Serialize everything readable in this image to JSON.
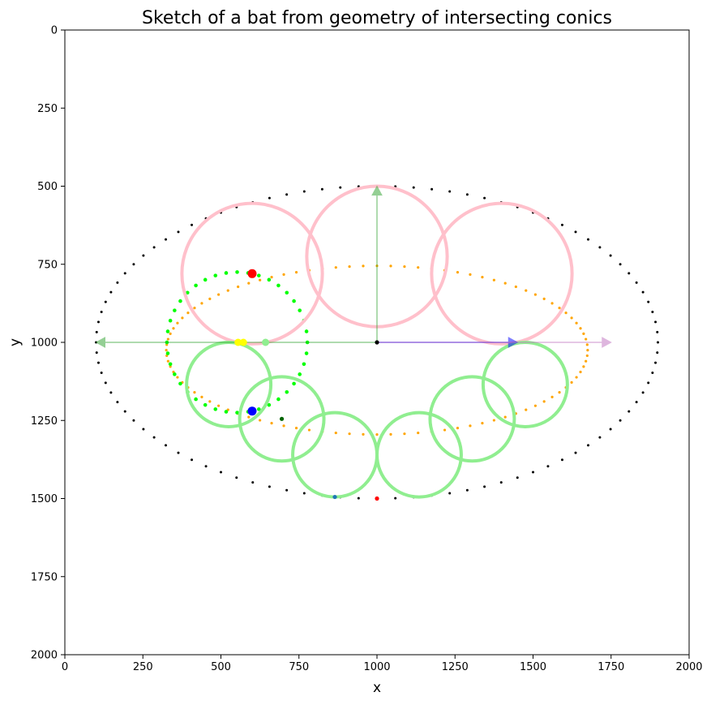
{
  "chart_data": {
    "type": "scatter",
    "title": "Sketch of a bat from geometry of intersecting conics",
    "xlabel": "x",
    "ylabel": "y",
    "xlim": [
      0,
      2000
    ],
    "ylim": [
      2000,
      0
    ],
    "y_inverted": true,
    "grid": false,
    "legend": "none",
    "xticks": [
      0,
      250,
      500,
      750,
      1000,
      1250,
      1500,
      1750,
      2000
    ],
    "yticks": [
      0,
      250,
      500,
      750,
      1000,
      1250,
      1500,
      1750,
      2000
    ],
    "xtick_labels": [
      "0",
      "250",
      "500",
      "750",
      "1000",
      "1250",
      "1500",
      "1750",
      "2000"
    ],
    "ytick_labels": [
      "0",
      "250",
      "500",
      "750",
      "1000",
      "1250",
      "1500",
      "1750",
      "2000"
    ],
    "ellipses": [
      {
        "role": "outer",
        "center": [
          1000,
          1000
        ],
        "rx": 900,
        "ry": 500,
        "style": "dotted",
        "color": "#000000",
        "count": 96
      },
      {
        "role": "inner",
        "center": [
          1000,
          1025
        ],
        "rx": 675,
        "ry": 270,
        "style": "dotted",
        "color": "#ffa500",
        "count": 96
      },
      {
        "role": "guide",
        "center": [
          552,
          1000
        ],
        "rx": 225,
        "ry": 225,
        "style": "dotted",
        "color": "#00ff00",
        "count": 40
      }
    ],
    "circles": [
      {
        "center": [
          600,
          780
        ],
        "r": 225,
        "color": "#ffc0cb"
      },
      {
        "center": [
          1000,
          725
        ],
        "r": 225,
        "color": "#ffc0cb"
      },
      {
        "center": [
          1400,
          780
        ],
        "r": 225,
        "color": "#ffc0cb"
      },
      {
        "center": [
          525,
          1135
        ],
        "r": 135,
        "color": "#90ee90"
      },
      {
        "center": [
          695,
          1245
        ],
        "r": 135,
        "color": "#90ee90"
      },
      {
        "center": [
          865,
          1360
        ],
        "r": 135,
        "color": "#90ee90"
      },
      {
        "center": [
          1135,
          1360
        ],
        "r": 135,
        "color": "#90ee90"
      },
      {
        "center": [
          1305,
          1245
        ],
        "r": 135,
        "color": "#90ee90"
      },
      {
        "center": [
          1475,
          1135
        ],
        "r": 135,
        "color": "#90ee90"
      }
    ],
    "arrows": [
      {
        "from": [
          1000,
          1000
        ],
        "to": [
          1000,
          500
        ],
        "color": "#2ca02c"
      },
      {
        "from": [
          1000,
          1000
        ],
        "to": [
          100,
          1000
        ],
        "color": "#2ca02c"
      },
      {
        "from": [
          1000,
          1000
        ],
        "to": [
          1450,
          1000
        ],
        "color": "#0000ff"
      },
      {
        "from": [
          1000,
          1000
        ],
        "to": [
          1750,
          1000
        ],
        "color": "#bf6fbf"
      }
    ],
    "markers": [
      {
        "x": 1000,
        "y": 1000,
        "color": "#000000",
        "size": "small"
      },
      {
        "x": 600,
        "y": 780,
        "color": "#ff0000",
        "size": "large"
      },
      {
        "x": 600,
        "y": 1220,
        "color": "#0000ff",
        "size": "large"
      },
      {
        "x": 695,
        "y": 1245,
        "color": "#006400",
        "size": "small"
      },
      {
        "x": 555,
        "y": 1000,
        "color": "#ffff00",
        "size": "medium"
      },
      {
        "x": 572,
        "y": 1000,
        "color": "#ffff00",
        "size": "medium"
      },
      {
        "x": 643,
        "y": 1000,
        "color": "#90ee90",
        "size": "medium"
      },
      {
        "x": 1000,
        "y": 1500,
        "color": "#ff0000",
        "size": "small"
      },
      {
        "x": 865,
        "y": 1495,
        "color": "#1f77b4",
        "size": "small"
      }
    ]
  }
}
